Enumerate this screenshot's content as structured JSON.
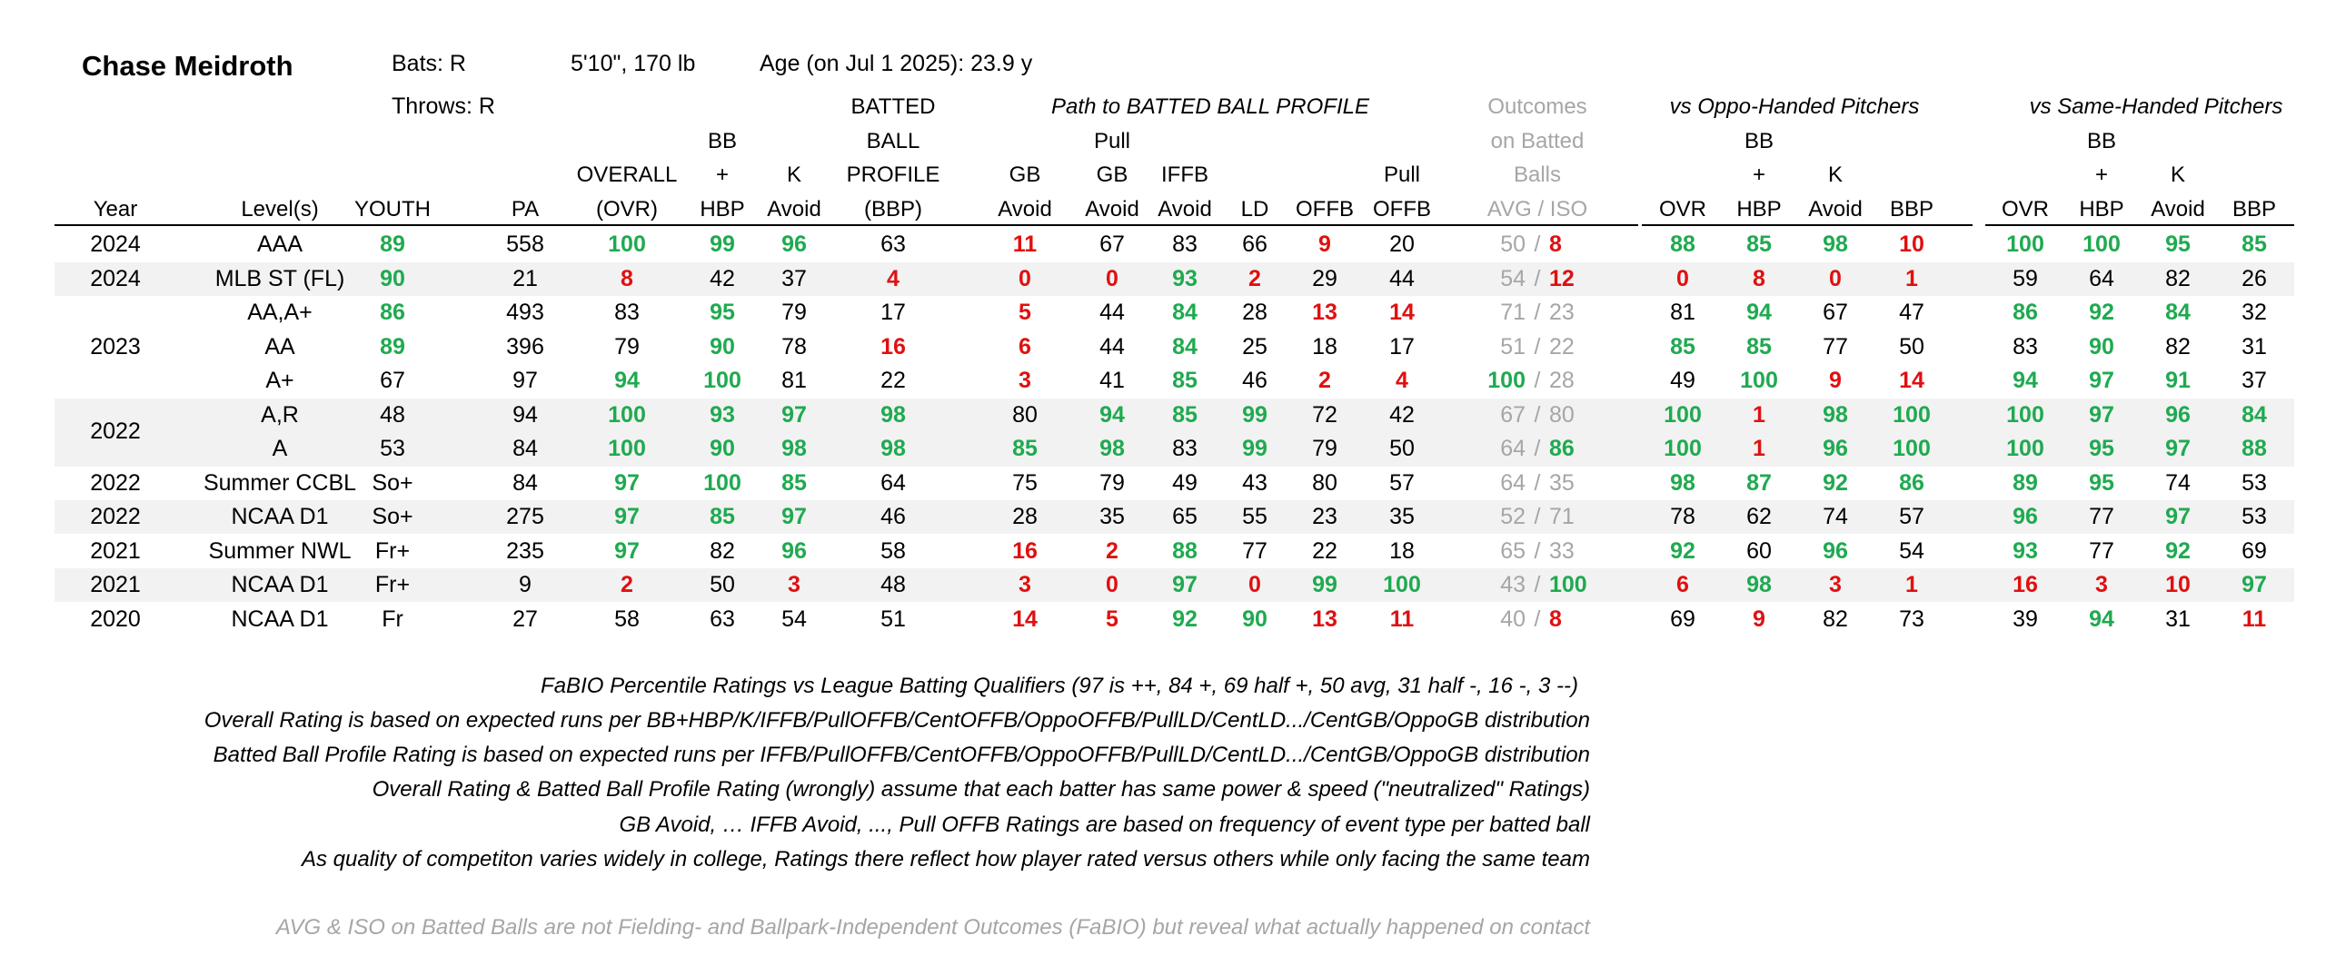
{
  "player": {
    "name": "Chase Meidroth",
    "bats": "Bats: R",
    "throws": "Throws: R",
    "size": "5'10\", 170 lb",
    "age": "Age (on Jul 1 2025): 23.9 y"
  },
  "header": {
    "year": "Year",
    "levels": "Level(s)",
    "youth": "YOUTH",
    "pa": "PA",
    "overall_1": "OVERALL",
    "overall_2": "(OVR)",
    "bbhbp_1": "BB",
    "bbhbp_2": "+",
    "bbhbp_3": "HBP",
    "kavoid_1": "K",
    "kavoid_2": "Avoid",
    "bbp_1": "BATTED",
    "bbp_2": "BALL",
    "bbp_3": "PROFILE",
    "bbp_4": "(BBP)",
    "path_title": "Path to BATTED BALL PROFILE",
    "gb_1": "GB",
    "gb_2": "Avoid",
    "pullgb_1": "Pull",
    "pullgb_2": "GB",
    "pullgb_3": "Avoid",
    "iffb_1": "IFFB",
    "iffb_2": "Avoid",
    "ld": "LD",
    "offb": "OFFB",
    "pulloffb_1": "Pull",
    "pulloffb_2": "OFFB",
    "outcomes_1": "Outcomes",
    "outcomes_2": "on Batted",
    "outcomes_3": "Balls",
    "outcomes_4": "AVG  /  ISO",
    "oppo_title": "vs Oppo-Handed Pitchers",
    "same_title": "vs Same-Handed Pitchers",
    "split_ovr": "OVR",
    "split_bb_1": "BB",
    "split_bb_2": "+",
    "split_bb_3": "HBP",
    "split_k_1": "K",
    "split_k_2": "Avoid",
    "split_bbp": "BBP"
  },
  "rows": [
    {
      "year": "2024",
      "level": "AAA",
      "youth": "89",
      "pa": "558",
      "ovr": "100",
      "bb": "99",
      "k": "96",
      "bbp": "63",
      "gb": "11",
      "pgb": "67",
      "iffb": "83",
      "ld": "66",
      "offb": "9",
      "poffb": "20",
      "avg": "50",
      "iso": "8",
      "o_ovr": "88",
      "o_bb": "85",
      "o_k": "98",
      "o_bbp": "10",
      "s_ovr": "100",
      "s_bb": "100",
      "s_k": "95",
      "s_bbp": "85"
    },
    {
      "year": "2024",
      "level": "MLB ST (FL)",
      "youth": "90",
      "pa": "21",
      "ovr": "8",
      "bb": "42",
      "k": "37",
      "bbp": "4",
      "gb": "0",
      "pgb": "0",
      "iffb": "93",
      "ld": "2",
      "offb": "29",
      "poffb": "44",
      "avg": "54",
      "iso": "12",
      "o_ovr": "0",
      "o_bb": "8",
      "o_k": "0",
      "o_bbp": "1",
      "s_ovr": "59",
      "s_bb": "64",
      "s_k": "82",
      "s_bbp": "26"
    },
    {
      "year": "",
      "level": "AA,A+",
      "youth": "86",
      "pa": "493",
      "ovr": "83",
      "bb": "95",
      "k": "79",
      "bbp": "17",
      "gb": "5",
      "pgb": "44",
      "iffb": "84",
      "ld": "28",
      "offb": "13",
      "poffb": "14",
      "avg": "71",
      "iso": "23",
      "o_ovr": "81",
      "o_bb": "94",
      "o_k": "67",
      "o_bbp": "47",
      "s_ovr": "86",
      "s_bb": "92",
      "s_k": "84",
      "s_bbp": "32"
    },
    {
      "year": "2023",
      "level": "AA",
      "youth": "89",
      "pa": "396",
      "ovr": "79",
      "bb": "90",
      "k": "78",
      "bbp": "16",
      "gb": "6",
      "pgb": "44",
      "iffb": "84",
      "ld": "25",
      "offb": "18",
      "poffb": "17",
      "avg": "51",
      "iso": "22",
      "o_ovr": "85",
      "o_bb": "85",
      "o_k": "77",
      "o_bbp": "50",
      "s_ovr": "83",
      "s_bb": "90",
      "s_k": "82",
      "s_bbp": "31"
    },
    {
      "year": "",
      "level": "A+",
      "youth": "67",
      "pa": "97",
      "ovr": "94",
      "bb": "100",
      "k": "81",
      "bbp": "22",
      "gb": "3",
      "pgb": "41",
      "iffb": "85",
      "ld": "46",
      "offb": "2",
      "poffb": "4",
      "avg": "100",
      "iso": "28",
      "o_ovr": "49",
      "o_bb": "100",
      "o_k": "9",
      "o_bbp": "14",
      "s_ovr": "94",
      "s_bb": "97",
      "s_k": "91",
      "s_bbp": "37"
    },
    {
      "year": "",
      "level": "A,R",
      "youth": "48",
      "pa": "94",
      "ovr": "100",
      "bb": "93",
      "k": "97",
      "bbp": "98",
      "gb": "80",
      "pgb": "94",
      "iffb": "85",
      "ld": "99",
      "offb": "72",
      "poffb": "42",
      "avg": "67",
      "iso": "80",
      "o_ovr": "100",
      "o_bb": "1",
      "o_k": "98",
      "o_bbp": "100",
      "s_ovr": "100",
      "s_bb": "97",
      "s_k": "96",
      "s_bbp": "84"
    },
    {
      "year": "",
      "level": "A",
      "youth": "53",
      "pa": "84",
      "ovr": "100",
      "bb": "90",
      "k": "98",
      "bbp": "98",
      "gb": "85",
      "pgb": "98",
      "iffb": "83",
      "ld": "99",
      "offb": "79",
      "poffb": "50",
      "avg": "64",
      "iso": "86",
      "o_ovr": "100",
      "o_bb": "1",
      "o_k": "96",
      "o_bbp": "100",
      "s_ovr": "100",
      "s_bb": "95",
      "s_k": "97",
      "s_bbp": "88"
    },
    {
      "year": "2022",
      "level": "Summer CCBL",
      "youth": "So+",
      "pa": "84",
      "ovr": "97",
      "bb": "100",
      "k": "85",
      "bbp": "64",
      "gb": "75",
      "pgb": "79",
      "iffb": "49",
      "ld": "43",
      "offb": "80",
      "poffb": "57",
      "avg": "64",
      "iso": "35",
      "o_ovr": "98",
      "o_bb": "87",
      "o_k": "92",
      "o_bbp": "86",
      "s_ovr": "89",
      "s_bb": "95",
      "s_k": "74",
      "s_bbp": "53"
    },
    {
      "year": "2022",
      "level": "NCAA D1",
      "youth": "So+",
      "pa": "275",
      "ovr": "97",
      "bb": "85",
      "k": "97",
      "bbp": "46",
      "gb": "28",
      "pgb": "35",
      "iffb": "65",
      "ld": "55",
      "offb": "23",
      "poffb": "35",
      "avg": "52",
      "iso": "71",
      "o_ovr": "78",
      "o_bb": "62",
      "o_k": "74",
      "o_bbp": "57",
      "s_ovr": "96",
      "s_bb": "77",
      "s_k": "97",
      "s_bbp": "53"
    },
    {
      "year": "2021",
      "level": "Summer NWL",
      "youth": "Fr+",
      "pa": "235",
      "ovr": "97",
      "bb": "82",
      "k": "96",
      "bbp": "58",
      "gb": "16",
      "pgb": "2",
      "iffb": "88",
      "ld": "77",
      "offb": "22",
      "poffb": "18",
      "avg": "65",
      "iso": "33",
      "o_ovr": "92",
      "o_bb": "60",
      "o_k": "96",
      "o_bbp": "54",
      "s_ovr": "93",
      "s_bb": "77",
      "s_k": "92",
      "s_bbp": "69"
    },
    {
      "year": "2021",
      "level": "NCAA D1",
      "youth": "Fr+",
      "pa": "9",
      "ovr": "2",
      "bb": "50",
      "k": "3",
      "bbp": "48",
      "gb": "3",
      "pgb": "0",
      "iffb": "97",
      "ld": "0",
      "offb": "99",
      "poffb": "100",
      "avg": "43",
      "iso": "100",
      "o_ovr": "6",
      "o_bb": "98",
      "o_k": "3",
      "o_bbp": "1",
      "s_ovr": "16",
      "s_bb": "3",
      "s_k": "10",
      "s_bbp": "97"
    },
    {
      "year": "2020",
      "level": "NCAA D1",
      "youth": "Fr",
      "pa": "27",
      "ovr": "58",
      "bb": "63",
      "k": "54",
      "bbp": "51",
      "gb": "14",
      "pgb": "5",
      "iffb": "92",
      "ld": "90",
      "offb": "13",
      "poffb": "11",
      "avg": "40",
      "iso": "8",
      "o_ovr": "69",
      "o_bb": "9",
      "o_k": "82",
      "o_bbp": "73",
      "s_ovr": "39",
      "s_bb": "94",
      "s_k": "31",
      "s_bbp": "11"
    }
  ],
  "merged_years": {
    "y2023": "2023",
    "y2022": "2022"
  },
  "footnotes": [
    "FaBIO Percentile Ratings vs League Batting Qualifiers (97 is ++, 84 +, 69 half +, 50 avg, 31 half -, 16 -, 3 --)",
    "Overall Rating is based on expected runs per BB+HBP/K/IFFB/PullOFFB/CentOFFB/OppoOFFB/PullLD/CentLD.../CentGB/OppoGB distribution",
    "Batted Ball Profile Rating is based on expected runs per IFFB/PullOFFB/CentOFFB/OppoOFFB/PullLD/CentLD.../CentGB/OppoGB distribution",
    "Overall Rating & Batted Ball Profile Rating (wrongly) assume that each batter has same power & speed (\"neutralized\" Ratings)",
    "GB Avoid, … IFFB Avoid, ..., Pull OFFB Ratings are based on frequency of event type per batted ball",
    "As quality of competiton varies widely in college, Ratings there reflect how player rated versus others while only facing the same team"
  ],
  "footnote_gray": "AVG & ISO on Batted Balls are not Fielding- and Ballpark-Independent Outcomes (FaBIO) but reveal what actually happened on contact",
  "colors": {
    "high": "#1faa50",
    "low": "#e01010",
    "muted": "#a6a6a6",
    "band": "#f2f2f2"
  }
}
